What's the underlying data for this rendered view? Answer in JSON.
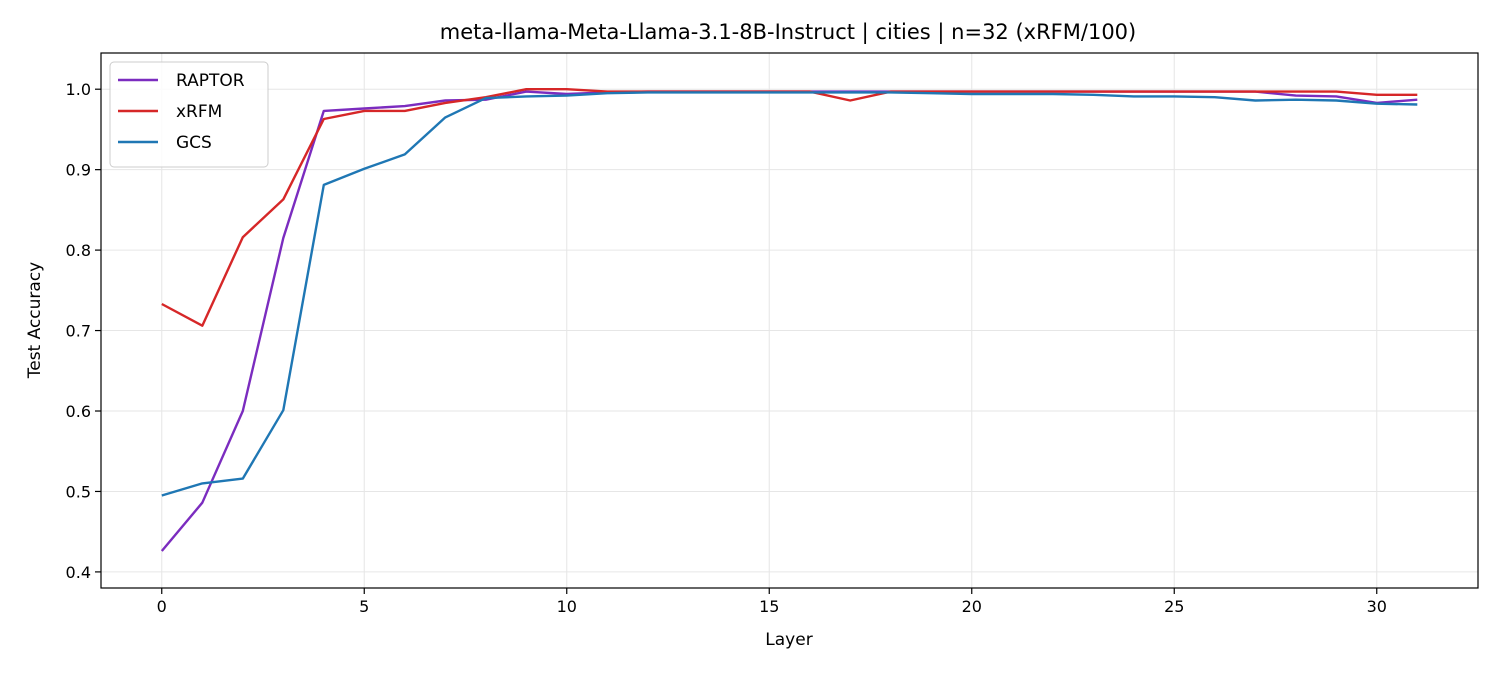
{
  "chart_data": {
    "type": "line",
    "title": "meta-llama-Meta-Llama-3.1-8B-Instruct | cities | n=32 (xRFM/100)",
    "xlabel": "Layer",
    "ylabel": "Test Accuracy",
    "xlim": [
      -1.5,
      32.5
    ],
    "ylim": [
      0.38,
      1.045
    ],
    "xticks": [
      0,
      5,
      10,
      15,
      20,
      25,
      30
    ],
    "yticks": [
      0.4,
      0.5,
      0.6,
      0.7,
      0.8,
      0.9,
      1.0
    ],
    "xtick_labels": [
      "0",
      "5",
      "10",
      "15",
      "20",
      "25",
      "30"
    ],
    "ytick_labels": [
      "0.4",
      "0.5",
      "0.6",
      "0.7",
      "0.8",
      "0.9",
      "1.0"
    ],
    "grid": true,
    "legend_position": "top-left",
    "x": [
      0,
      1,
      2,
      3,
      4,
      5,
      6,
      7,
      8,
      9,
      10,
      11,
      12,
      13,
      14,
      15,
      16,
      17,
      18,
      19,
      20,
      21,
      22,
      23,
      24,
      25,
      26,
      27,
      28,
      29,
      30,
      31
    ],
    "series": [
      {
        "name": "RAPTOR",
        "color": "#7b2cbf",
        "values": [
          0.426,
          0.486,
          0.6,
          0.815,
          0.973,
          0.976,
          0.979,
          0.986,
          0.987,
          0.997,
          0.994,
          0.996,
          0.997,
          0.997,
          0.997,
          0.997,
          0.997,
          0.997,
          0.997,
          0.997,
          0.997,
          0.997,
          0.997,
          0.997,
          0.997,
          0.997,
          0.997,
          0.997,
          0.992,
          0.991,
          0.983,
          0.987
        ]
      },
      {
        "name": "xRFM",
        "color": "#d62728",
        "values": [
          0.733,
          0.706,
          0.816,
          0.863,
          0.963,
          0.973,
          0.973,
          0.983,
          0.99,
          1.0,
          1.0,
          0.997,
          0.997,
          0.997,
          0.997,
          0.997,
          0.997,
          0.986,
          0.997,
          0.997,
          0.997,
          0.997,
          0.997,
          0.997,
          0.997,
          0.997,
          0.997,
          0.997,
          0.997,
          0.997,
          0.993,
          0.993
        ]
      },
      {
        "name": "GCS",
        "color": "#1f77b4",
        "values": [
          0.495,
          0.51,
          0.516,
          0.601,
          0.881,
          0.901,
          0.919,
          0.965,
          0.989,
          0.991,
          0.992,
          0.995,
          0.996,
          0.996,
          0.996,
          0.996,
          0.996,
          0.996,
          0.996,
          0.995,
          0.994,
          0.994,
          0.994,
          0.993,
          0.991,
          0.991,
          0.99,
          0.986,
          0.987,
          0.986,
          0.982,
          0.981
        ]
      }
    ]
  }
}
